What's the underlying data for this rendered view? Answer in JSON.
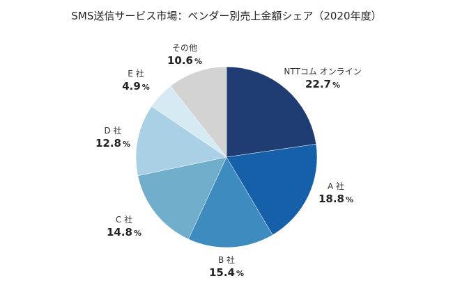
{
  "chart_data": {
    "type": "pie",
    "title": "SMS送信サービス市場：ベンダー別売上金額シェア（2020年度）",
    "unit": "%",
    "start_angle_deg": 0,
    "direction": "clockwise",
    "slices": [
      {
        "name": "NTTコム オンライン",
        "value": 22.7,
        "value_text": "22.7",
        "color": "#1f3d73"
      },
      {
        "name": "A 社",
        "value": 18.8,
        "value_text": "18.8",
        "color": "#1560a8"
      },
      {
        "name": "B 社",
        "value": 15.4,
        "value_text": "15.4",
        "color": "#3d8bbf"
      },
      {
        "name": "C 社",
        "value": 14.8,
        "value_text": "14.8",
        "color": "#70aecb"
      },
      {
        "name": "D 社",
        "value": 12.8,
        "value_text": "12.8",
        "color": "#a9d0e4"
      },
      {
        "name": "E 社",
        "value": 4.9,
        "value_text": "4.9",
        "color": "#d6eaf3"
      },
      {
        "name": "その他",
        "value": 10.6,
        "value_text": "10.6",
        "color": "#d3d3d3"
      }
    ]
  }
}
